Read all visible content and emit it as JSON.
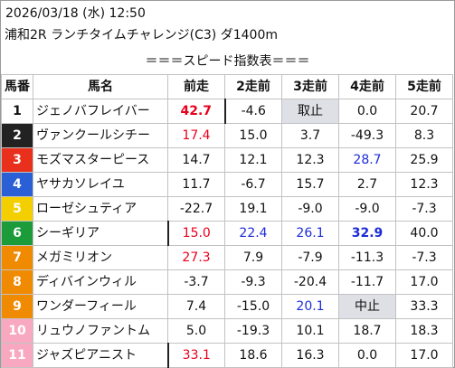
{
  "header": {
    "date": "2026/03/18 (水) 12:50",
    "race": "浦和2R ランチタイムチャレンジ(C3) ダ1400m",
    "subtitle": "＝＝＝スピード指数表＝＝＝"
  },
  "columns": [
    "馬番",
    "馬名",
    "前走",
    "2走前",
    "3走前",
    "4走前",
    "5走前"
  ],
  "colors": {
    "gate1": "#ffffff",
    "gate2": "#222222",
    "gate3": "#e8301c",
    "gate4": "#2a5fd6",
    "gate5": "#f4cf00",
    "gate6": "#1b9b3a",
    "gate7": "#f08a00",
    "gate8": "#f8a9c0",
    "highlight_red": "#e8001c",
    "highlight_blue": "#1d2bd8",
    "boxed_bg": "#dfe0e6"
  },
  "rows": [
    {
      "num": "1",
      "name": "ジェノバフレイバー",
      "v": [
        "42.7",
        "-4.6",
        "取止",
        "0.0",
        "20.7"
      ]
    },
    {
      "num": "2",
      "name": "ヴァンクールシチー",
      "v": [
        "17.4",
        "15.0",
        "3.7",
        "-49.3",
        "8.3"
      ]
    },
    {
      "num": "3",
      "name": "モズマスターピース",
      "v": [
        "14.7",
        "12.1",
        "12.3",
        "28.7",
        "25.9"
      ]
    },
    {
      "num": "4",
      "name": "ヤサカソレイユ",
      "v": [
        "11.7",
        "-6.7",
        "15.7",
        "2.7",
        "12.3"
      ]
    },
    {
      "num": "5",
      "name": "ローゼシュティア",
      "v": [
        "-22.7",
        "19.1",
        "-9.0",
        "-9.0",
        "-7.3"
      ]
    },
    {
      "num": "6",
      "name": "シーギリア",
      "v": [
        "15.0",
        "22.4",
        "26.1",
        "32.9",
        "40.0"
      ]
    },
    {
      "num": "7",
      "name": "メガミリオン",
      "v": [
        "27.3",
        "7.9",
        "-7.9",
        "-11.3",
        "-7.3"
      ]
    },
    {
      "num": "8",
      "name": "ディバインウィル",
      "v": [
        "-3.7",
        "-9.3",
        "-20.4",
        "-11.7",
        "17.0"
      ]
    },
    {
      "num": "9",
      "name": "ワンダーフィール",
      "v": [
        "7.4",
        "-15.0",
        "20.1",
        "中止",
        "33.3"
      ]
    },
    {
      "num": "10",
      "name": "リュウノファントム",
      "v": [
        "5.0",
        "-19.3",
        "10.1",
        "18.7",
        "18.3"
      ]
    },
    {
      "num": "11",
      "name": "ジャズピアニスト",
      "v": [
        "33.1",
        "18.6",
        "16.3",
        "0.0",
        "17.0"
      ]
    }
  ]
}
